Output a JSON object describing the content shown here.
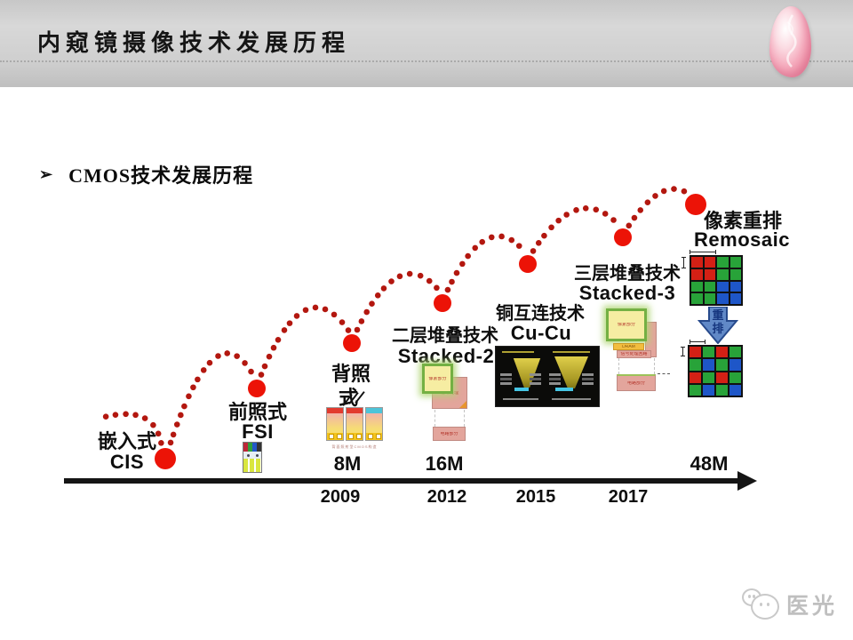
{
  "header": {
    "title": "内窥镜摄像技术发展历程"
  },
  "bullet": {
    "marker": "➢",
    "text": "CMOS技术发展历程"
  },
  "timeline": {
    "milestones": [
      {
        "cn": "嵌入式",
        "en": "CIS"
      },
      {
        "cn": "前照式",
        "en": "FSI"
      },
      {
        "cn_line1": "背照",
        "cn_line2": "式",
        "en": ""
      },
      {
        "cn": "二层堆叠技术",
        "en": "Stacked-2"
      },
      {
        "cn": "铜互连技术",
        "en": "Cu-Cu"
      },
      {
        "cn": "三层堆叠技术",
        "en": "Stacked-3"
      },
      {
        "cn": "像素重排",
        "en": "Remosaic"
      }
    ],
    "capacities": [
      {
        "text": "8M"
      },
      {
        "text": "16M"
      },
      {
        "text": "48M"
      }
    ],
    "years": [
      {
        "text": "2009"
      },
      {
        "text": "2012"
      },
      {
        "text": "2015"
      },
      {
        "text": "2017"
      }
    ]
  },
  "remosaic": {
    "arrow_label": "重排",
    "pixel_colors": {
      "R": "#d42015",
      "G": "#28a339",
      "B": "#1e56c8"
    },
    "quad_grid": [
      [
        "R",
        "R",
        "G",
        "G"
      ],
      [
        "R",
        "R",
        "G",
        "G"
      ],
      [
        "G",
        "G",
        "B",
        "B"
      ],
      [
        "G",
        "G",
        "B",
        "B"
      ]
    ],
    "bayer_grid": [
      [
        "R",
        "G",
        "R",
        "G"
      ],
      [
        "G",
        "B",
        "G",
        "B"
      ],
      [
        "R",
        "G",
        "R",
        "G"
      ],
      [
        "G",
        "B",
        "G",
        "B"
      ]
    ]
  },
  "diagrams": {
    "stacked2": {
      "top": "像素部分",
      "mid": "信号处理",
      "bottom": "电路部分"
    },
    "stacked3": {
      "top": "像素部分",
      "strip1": "DRAM",
      "strip2": "信号处理回路",
      "bottom": "电路部分"
    },
    "bsi_caption": "背面照射型CMOS构造"
  },
  "watermark": {
    "text": "医光"
  },
  "colors": {
    "big_dot": "#ec1307",
    "trail_dot": "#b3170f"
  }
}
